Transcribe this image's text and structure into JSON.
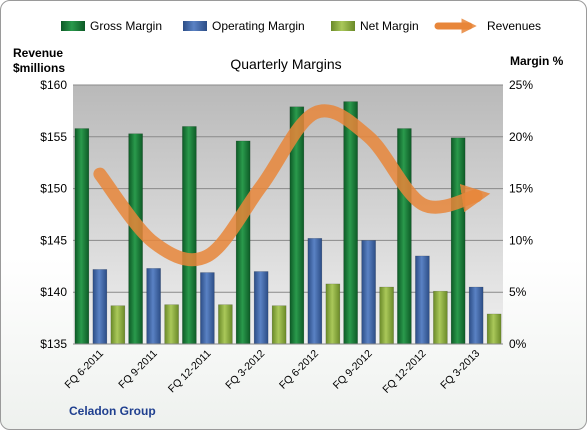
{
  "chart_data": {
    "type": "bar",
    "title": "Quarterly Margins",
    "company": "Celadon Group",
    "categories": [
      "FQ 6-2011",
      "FQ 9-2011",
      "FQ 12-2011",
      "FQ 3-2012",
      "FQ 6-2012",
      "FQ 9-2012",
      "FQ 12-2012",
      "FQ 3-2013"
    ],
    "y_left": {
      "label_line1": "Revenue",
      "label_line2": "$millions",
      "range": [
        135,
        160
      ],
      "ticks": [
        "$135",
        "$140",
        "$145",
        "$150",
        "$155",
        "$160"
      ]
    },
    "y_right": {
      "label": "Margin %",
      "range": [
        0,
        25
      ],
      "ticks": [
        "0%",
        "5%",
        "10%",
        "15%",
        "20%",
        "25%"
      ]
    },
    "series": [
      {
        "name": "Gross Margin",
        "type": "bar",
        "axis": "right",
        "color": "#1e7a3c",
        "values": [
          20.8,
          20.3,
          21.0,
          19.6,
          22.9,
          23.4,
          20.8,
          19.9
        ]
      },
      {
        "name": "Operating Margin",
        "type": "bar",
        "axis": "right",
        "color": "#4169a8",
        "values": [
          7.2,
          7.3,
          6.9,
          7.0,
          10.2,
          10.0,
          8.5,
          5.5
        ]
      },
      {
        "name": "Net Margin",
        "type": "bar",
        "axis": "right",
        "color": "#8fae3e",
        "values": [
          3.7,
          3.8,
          3.8,
          3.7,
          5.8,
          5.5,
          5.1,
          2.9
        ]
      },
      {
        "name": "Revenues",
        "type": "line",
        "axis": "left",
        "color": "#e8863a",
        "values": [
          151.4,
          144.8,
          143.5,
          150.2,
          157.3,
          155.0,
          148.5,
          149.3
        ]
      }
    ],
    "grid": true,
    "legend": "top"
  }
}
